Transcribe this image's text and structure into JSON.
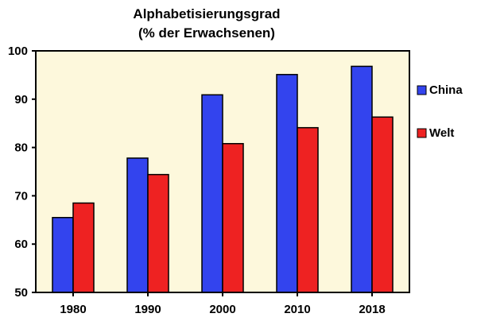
{
  "chart_data": {
    "type": "bar",
    "title_line1": "Alphabetisierungsgrad",
    "title_line2": "(% der Erwachsenen)",
    "categories": [
      "1980",
      "1990",
      "2000",
      "2010",
      "2018"
    ],
    "series": [
      {
        "name": "China",
        "color": "#3344ee",
        "values": [
          65.5,
          77.8,
          90.9,
          95.1,
          96.8
        ]
      },
      {
        "name": "Welt",
        "color": "#ee2222",
        "values": [
          68.5,
          74.4,
          80.8,
          84.1,
          86.3
        ]
      }
    ],
    "ylim": [
      50,
      100
    ],
    "yticks": [
      50,
      60,
      70,
      80,
      90,
      100
    ],
    "plot_background": "#fdf8dc",
    "legend_position": "right"
  }
}
